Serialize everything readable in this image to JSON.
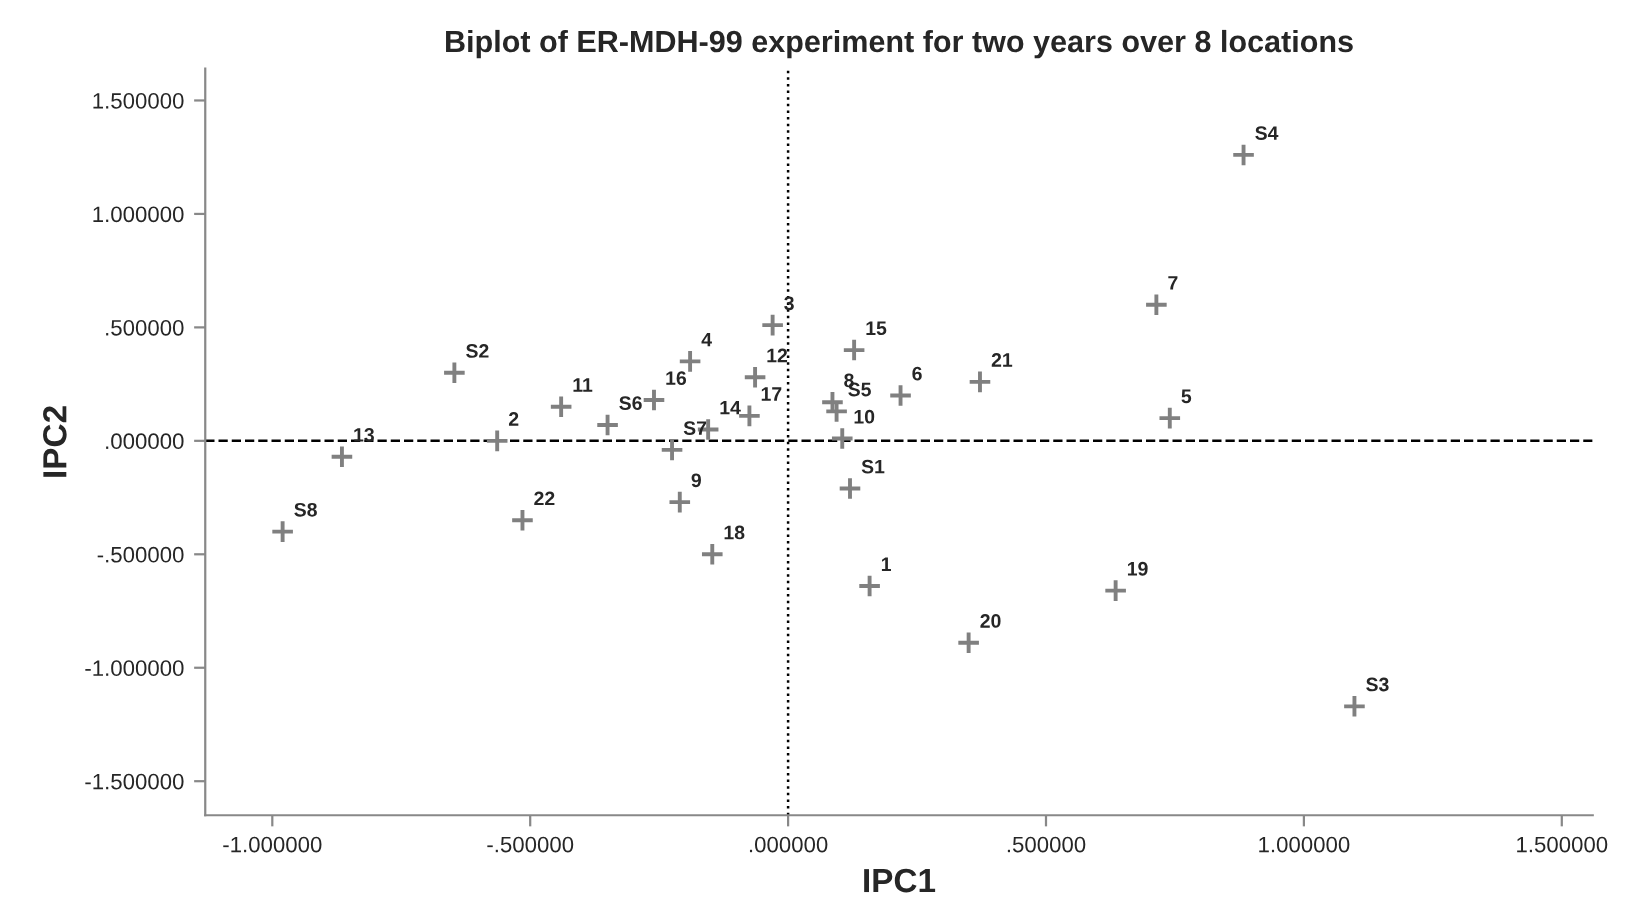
{
  "chart_data": {
    "type": "scatter",
    "title": "Biplot of ER-MDH-99 experiment for two years over 8 locations",
    "xlabel": "IPC1",
    "ylabel": "IPC2",
    "x": [
      -0.98,
      -0.865,
      -0.647,
      -0.564,
      -0.515,
      -0.44,
      -0.35,
      -0.26,
      -0.225,
      -0.19,
      -0.21,
      -0.155,
      -0.147,
      -0.075,
      -0.064,
      -0.03,
      0.086,
      0.094,
      0.128,
      0.105,
      0.12,
      0.218,
      0.158,
      0.372,
      0.35,
      0.714,
      0.74,
      0.635,
      0.883,
      1.098
    ],
    "values": [
      -0.4,
      -0.07,
      0.3,
      0.0,
      -0.35,
      0.15,
      0.07,
      0.18,
      -0.04,
      0.35,
      -0.27,
      0.05,
      -0.5,
      0.11,
      0.28,
      0.51,
      0.17,
      0.13,
      0.4,
      0.01,
      -0.21,
      0.2,
      -0.64,
      0.26,
      -0.89,
      0.6,
      0.1,
      -0.66,
      1.26,
      -1.17
    ],
    "color": "#808080",
    "marker": "cross",
    "grid": false,
    "legend": false,
    "annotations": [
      {
        "text": "S8",
        "x": -0.98,
        "y": -0.4
      },
      {
        "text": "13",
        "x": -0.865,
        "y": -0.07
      },
      {
        "text": "S2",
        "x": -0.647,
        "y": 0.3
      },
      {
        "text": "2",
        "x": -0.564,
        "y": 0.0
      },
      {
        "text": "22",
        "x": -0.515,
        "y": -0.35
      },
      {
        "text": "11",
        "x": -0.44,
        "y": 0.15
      },
      {
        "text": "S6",
        "x": -0.35,
        "y": 0.07
      },
      {
        "text": "16",
        "x": -0.26,
        "y": 0.18
      },
      {
        "text": "S7",
        "x": -0.225,
        "y": -0.04
      },
      {
        "text": "4",
        "x": -0.19,
        "y": 0.35
      },
      {
        "text": "9",
        "x": -0.21,
        "y": -0.27
      },
      {
        "text": "14",
        "x": -0.155,
        "y": 0.05
      },
      {
        "text": "18",
        "x": -0.147,
        "y": -0.5
      },
      {
        "text": "17",
        "x": -0.075,
        "y": 0.11
      },
      {
        "text": "12",
        "x": -0.064,
        "y": 0.28
      },
      {
        "text": "3",
        "x": -0.03,
        "y": 0.51
      },
      {
        "text": "8",
        "x": 0.086,
        "y": 0.17
      },
      {
        "text": "S5",
        "x": 0.094,
        "y": 0.13
      },
      {
        "text": "15",
        "x": 0.128,
        "y": 0.4
      },
      {
        "text": "10",
        "x": 0.105,
        "y": 0.01
      },
      {
        "text": "S1",
        "x": 0.12,
        "y": -0.21
      },
      {
        "text": "6",
        "x": 0.218,
        "y": 0.2
      },
      {
        "text": "1",
        "x": 0.158,
        "y": -0.64
      },
      {
        "text": "21",
        "x": 0.372,
        "y": 0.26
      },
      {
        "text": "20",
        "x": 0.35,
        "y": -0.89
      },
      {
        "text": "7",
        "x": 0.714,
        "y": 0.6
      },
      {
        "text": "5",
        "x": 0.74,
        "y": 0.1
      },
      {
        "text": "19",
        "x": 0.635,
        "y": -0.66
      },
      {
        "text": "S4",
        "x": 0.883,
        "y": 1.26
      },
      {
        "text": "S3",
        "x": 1.098,
        "y": -1.17
      }
    ],
    "ref_lines": [
      {
        "axis": "x",
        "value": 0,
        "line_style": "dotted",
        "color": "#000000"
      },
      {
        "axis": "y",
        "value": 0,
        "line_style": "dashed",
        "color": "#000000"
      }
    ],
    "xlim": [
      -1.13,
      1.56
    ],
    "ylim": [
      -1.65,
      1.64
    ],
    "xticks": [
      {
        "value": -1.0,
        "label": "-1.000000"
      },
      {
        "value": -0.5,
        "label": "-.500000"
      },
      {
        "value": 0,
        "label": ".000000"
      },
      {
        "value": 0.5,
        "label": ".500000"
      },
      {
        "value": 1.0,
        "label": "1.000000"
      },
      {
        "value": 1.5,
        "label": "1.500000"
      }
    ],
    "yticks": [
      {
        "value": -1.5,
        "label": "-1.500000"
      },
      {
        "value": -1.0,
        "label": "-1.000000"
      },
      {
        "value": -0.5,
        "label": "-.500000"
      },
      {
        "value": 0,
        "label": ".000000"
      },
      {
        "value": 0.5,
        "label": ".500000"
      },
      {
        "value": 1.0,
        "label": "1.000000"
      },
      {
        "value": 1.5,
        "label": "1.500000"
      }
    ]
  }
}
